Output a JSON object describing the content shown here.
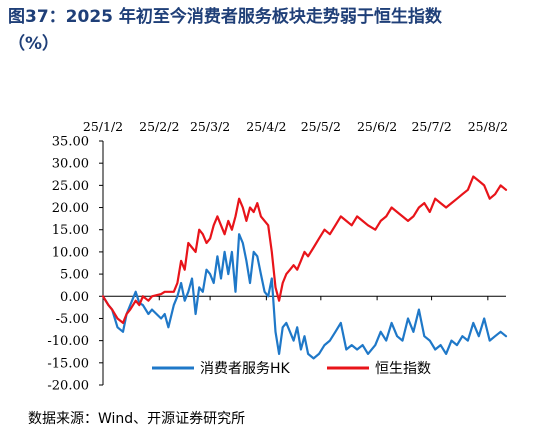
{
  "title_line1": "图37：2025 年初至今消费者服务板块走势弱于恒生指数",
  "title_line2": "（%）",
  "source": "数据来源：Wind、开源证券研究所",
  "chart_data": {
    "type": "line",
    "title": "",
    "xlabel": "",
    "ylabel": "",
    "x_range": [
      "2025-01-02",
      "2025-08-12"
    ],
    "x_ticks": [
      {
        "date": "2025-01-02",
        "label": "25/1/2"
      },
      {
        "date": "2025-02-02",
        "label": "25/2/2"
      },
      {
        "date": "2025-03-02",
        "label": "25/3/2"
      },
      {
        "date": "2025-04-02",
        "label": "25/4/2"
      },
      {
        "date": "2025-05-02",
        "label": "25/5/2"
      },
      {
        "date": "2025-06-02",
        "label": "25/6/2"
      },
      {
        "date": "2025-07-02",
        "label": "25/7/2"
      },
      {
        "date": "2025-08-02",
        "label": "25/8/2"
      }
    ],
    "ylim": [
      -20,
      35
    ],
    "y_ticks": [
      "35.00",
      "30.00",
      "25.00",
      "20.00",
      "15.00",
      "10.00",
      "5.00",
      "0.00",
      "-5.00",
      "-10.00",
      "-15.00",
      "-20.00"
    ],
    "grid": false,
    "legend_position": "bottom",
    "series": [
      {
        "name": "消费者服务HK",
        "color": "#1f78c8",
        "points": [
          [
            "2025-01-02",
            0
          ],
          [
            "2025-01-05",
            -2
          ],
          [
            "2025-01-07",
            -3
          ],
          [
            "2025-01-10",
            -7
          ],
          [
            "2025-01-13",
            -8
          ],
          [
            "2025-01-15",
            -4
          ],
          [
            "2025-01-17",
            -2
          ],
          [
            "2025-01-20",
            1
          ],
          [
            "2025-01-22",
            -1.5
          ],
          [
            "2025-01-24",
            -2
          ],
          [
            "2025-01-27",
            -4
          ],
          [
            "2025-01-29",
            -3
          ],
          [
            "2025-02-03",
            -5
          ],
          [
            "2025-02-05",
            -4
          ],
          [
            "2025-02-07",
            -7
          ],
          [
            "2025-02-10",
            -2
          ],
          [
            "2025-02-12",
            0
          ],
          [
            "2025-02-14",
            3
          ],
          [
            "2025-02-16",
            -1
          ],
          [
            "2025-02-18",
            1
          ],
          [
            "2025-02-20",
            4
          ],
          [
            "2025-02-22",
            -4
          ],
          [
            "2025-02-24",
            2
          ],
          [
            "2025-02-26",
            1
          ],
          [
            "2025-02-28",
            6
          ],
          [
            "2025-03-02",
            5
          ],
          [
            "2025-03-04",
            3
          ],
          [
            "2025-03-06",
            9
          ],
          [
            "2025-03-08",
            4
          ],
          [
            "2025-03-10",
            10
          ],
          [
            "2025-03-12",
            5
          ],
          [
            "2025-03-14",
            10
          ],
          [
            "2025-03-16",
            1
          ],
          [
            "2025-03-18",
            14
          ],
          [
            "2025-03-20",
            12
          ],
          [
            "2025-03-22",
            8
          ],
          [
            "2025-03-24",
            3
          ],
          [
            "2025-03-26",
            10
          ],
          [
            "2025-03-28",
            9
          ],
          [
            "2025-03-30",
            5
          ],
          [
            "2025-04-01",
            1
          ],
          [
            "2025-04-03",
            0
          ],
          [
            "2025-04-05",
            4
          ],
          [
            "2025-04-07",
            -8
          ],
          [
            "2025-04-09",
            -13
          ],
          [
            "2025-04-11",
            -7
          ],
          [
            "2025-04-13",
            -6
          ],
          [
            "2025-04-15",
            -8
          ],
          [
            "2025-04-17",
            -10
          ],
          [
            "2025-04-19",
            -7
          ],
          [
            "2025-04-21",
            -12
          ],
          [
            "2025-04-23",
            -9
          ],
          [
            "2025-04-25",
            -13
          ],
          [
            "2025-04-28",
            -14
          ],
          [
            "2025-05-01",
            -13
          ],
          [
            "2025-05-04",
            -11
          ],
          [
            "2025-05-07",
            -10
          ],
          [
            "2025-05-10",
            -8
          ],
          [
            "2025-05-13",
            -6
          ],
          [
            "2025-05-16",
            -12
          ],
          [
            "2025-05-19",
            -11
          ],
          [
            "2025-05-22",
            -12
          ],
          [
            "2025-05-25",
            -11
          ],
          [
            "2025-05-28",
            -13
          ],
          [
            "2025-06-01",
            -11
          ],
          [
            "2025-06-04",
            -8
          ],
          [
            "2025-06-07",
            -10
          ],
          [
            "2025-06-10",
            -6
          ],
          [
            "2025-06-13",
            -9
          ],
          [
            "2025-06-16",
            -10
          ],
          [
            "2025-06-19",
            -5
          ],
          [
            "2025-06-22",
            -8
          ],
          [
            "2025-06-25",
            -3
          ],
          [
            "2025-06-28",
            -9
          ],
          [
            "2025-07-01",
            -10
          ],
          [
            "2025-07-04",
            -12
          ],
          [
            "2025-07-07",
            -11
          ],
          [
            "2025-07-10",
            -13
          ],
          [
            "2025-07-13",
            -10
          ],
          [
            "2025-07-16",
            -11
          ],
          [
            "2025-07-19",
            -9
          ],
          [
            "2025-07-22",
            -10
          ],
          [
            "2025-07-25",
            -6
          ],
          [
            "2025-07-28",
            -9
          ],
          [
            "2025-07-31",
            -5
          ],
          [
            "2025-08-03",
            -10
          ],
          [
            "2025-08-06",
            -9
          ],
          [
            "2025-08-09",
            -8
          ],
          [
            "2025-08-12",
            -9
          ]
        ]
      },
      {
        "name": "恒生指数",
        "color": "#e8141a",
        "points": [
          [
            "2025-01-02",
            0
          ],
          [
            "2025-01-05",
            -2
          ],
          [
            "2025-01-07",
            -3
          ],
          [
            "2025-01-10",
            -5
          ],
          [
            "2025-01-13",
            -6
          ],
          [
            "2025-01-15",
            -4
          ],
          [
            "2025-01-17",
            -3
          ],
          [
            "2025-01-20",
            -1
          ],
          [
            "2025-01-22",
            -2
          ],
          [
            "2025-01-24",
            0
          ],
          [
            "2025-01-27",
            -1
          ],
          [
            "2025-01-29",
            0
          ],
          [
            "2025-02-03",
            0.5
          ],
          [
            "2025-02-05",
            1
          ],
          [
            "2025-02-07",
            1
          ],
          [
            "2025-02-10",
            1
          ],
          [
            "2025-02-12",
            3
          ],
          [
            "2025-02-14",
            8
          ],
          [
            "2025-02-16",
            6
          ],
          [
            "2025-02-18",
            12
          ],
          [
            "2025-02-20",
            11
          ],
          [
            "2025-02-22",
            10
          ],
          [
            "2025-02-24",
            15
          ],
          [
            "2025-02-26",
            14
          ],
          [
            "2025-02-28",
            12
          ],
          [
            "2025-03-02",
            13
          ],
          [
            "2025-03-04",
            16
          ],
          [
            "2025-03-06",
            18
          ],
          [
            "2025-03-08",
            16
          ],
          [
            "2025-03-10",
            14
          ],
          [
            "2025-03-12",
            17
          ],
          [
            "2025-03-14",
            15
          ],
          [
            "2025-03-16",
            18
          ],
          [
            "2025-03-18",
            22
          ],
          [
            "2025-03-20",
            20
          ],
          [
            "2025-03-22",
            17
          ],
          [
            "2025-03-24",
            20
          ],
          [
            "2025-03-26",
            19
          ],
          [
            "2025-03-28",
            21
          ],
          [
            "2025-03-30",
            18
          ],
          [
            "2025-04-01",
            17
          ],
          [
            "2025-04-03",
            16
          ],
          [
            "2025-04-05",
            10
          ],
          [
            "2025-04-07",
            2
          ],
          [
            "2025-04-09",
            -1
          ],
          [
            "2025-04-11",
            3
          ],
          [
            "2025-04-13",
            5
          ],
          [
            "2025-04-15",
            6
          ],
          [
            "2025-04-17",
            7
          ],
          [
            "2025-04-19",
            6
          ],
          [
            "2025-04-21",
            8
          ],
          [
            "2025-04-23",
            10
          ],
          [
            "2025-04-25",
            9
          ],
          [
            "2025-04-28",
            11
          ],
          [
            "2025-05-01",
            13
          ],
          [
            "2025-05-04",
            15
          ],
          [
            "2025-05-07",
            14
          ],
          [
            "2025-05-10",
            16
          ],
          [
            "2025-05-13",
            18
          ],
          [
            "2025-05-16",
            17
          ],
          [
            "2025-05-19",
            16
          ],
          [
            "2025-05-22",
            18
          ],
          [
            "2025-05-25",
            17
          ],
          [
            "2025-05-28",
            16
          ],
          [
            "2025-06-01",
            15
          ],
          [
            "2025-06-04",
            17
          ],
          [
            "2025-06-07",
            18
          ],
          [
            "2025-06-10",
            20
          ],
          [
            "2025-06-13",
            19
          ],
          [
            "2025-06-16",
            18
          ],
          [
            "2025-06-19",
            17
          ],
          [
            "2025-06-22",
            18
          ],
          [
            "2025-06-25",
            20
          ],
          [
            "2025-06-28",
            21
          ],
          [
            "2025-07-01",
            19
          ],
          [
            "2025-07-04",
            22
          ],
          [
            "2025-07-07",
            21
          ],
          [
            "2025-07-10",
            20
          ],
          [
            "2025-07-13",
            21
          ],
          [
            "2025-07-16",
            22
          ],
          [
            "2025-07-19",
            23
          ],
          [
            "2025-07-22",
            24
          ],
          [
            "2025-07-25",
            27
          ],
          [
            "2025-07-28",
            26
          ],
          [
            "2025-07-31",
            25
          ],
          [
            "2025-08-03",
            22
          ],
          [
            "2025-08-06",
            23
          ],
          [
            "2025-08-09",
            25
          ],
          [
            "2025-08-12",
            24
          ]
        ]
      }
    ]
  }
}
